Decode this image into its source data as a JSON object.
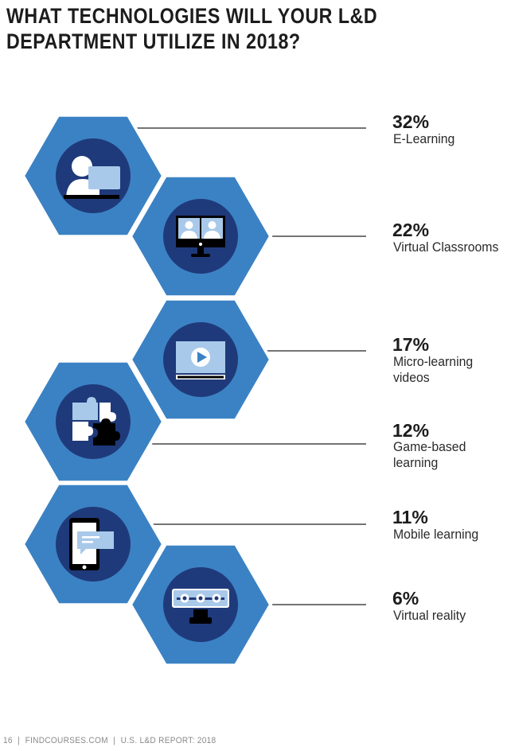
{
  "title": "WHAT TECHNOLOGIES WILL YOUR L&D DEPARTMENT UTILIZE IN 2018?",
  "colors": {
    "hex_fill": "#3b82c4",
    "circle_fill": "#1f3a7a",
    "icon_light": "#a9c9ea",
    "icon_white": "#ffffff",
    "icon_dark": "#000000"
  },
  "chart_data": {
    "type": "bar",
    "categories": [
      "E-Learning",
      "Virtual Classrooms",
      "Micro-learning videos",
      "Game-based learning",
      "Mobile learning",
      "Virtual reality"
    ],
    "values": [
      32,
      22,
      17,
      12,
      11,
      6
    ],
    "value_labels": [
      "32%",
      "22%",
      "17%",
      "12%",
      "11%",
      "6%"
    ],
    "label_lines": [
      [
        "E-Learning"
      ],
      [
        "Virtual Classrooms"
      ],
      [
        "Micro-learning",
        "videos"
      ],
      [
        "Game-based",
        "learning"
      ],
      [
        "Mobile learning"
      ],
      [
        "Virtual reality"
      ]
    ],
    "icons": [
      "elearning-icon",
      "virtual-classroom-icon",
      "video-play-icon",
      "puzzle-icon",
      "mobile-chat-icon",
      "vr-headset-icon"
    ],
    "unit": "%"
  },
  "footer": {
    "page": "16",
    "site": "FINDCOURSES.COM",
    "report": "U.S. L&D REPORT: 2018"
  }
}
